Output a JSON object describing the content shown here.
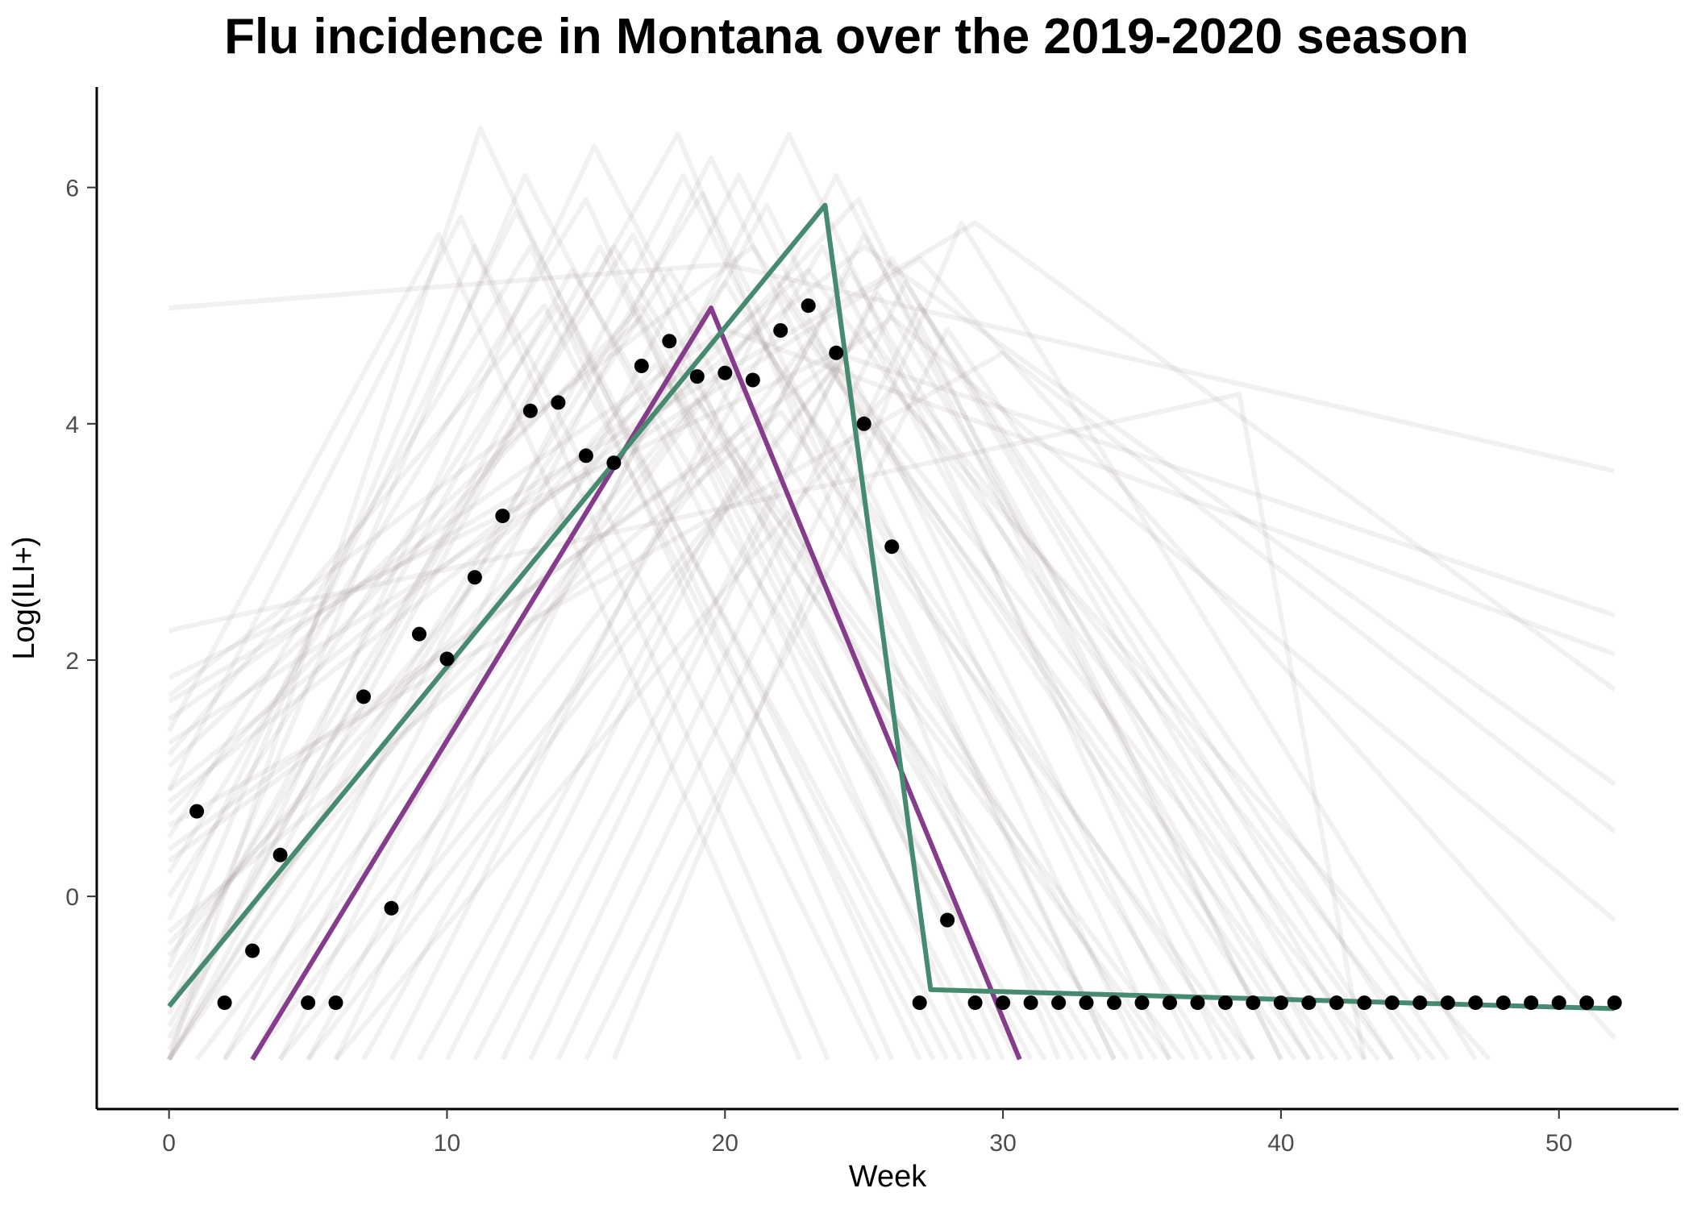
{
  "chart_data": {
    "type": "line",
    "title": "Flu incidence in Montana over the 2019-2020 season",
    "xlabel": "Week",
    "ylabel": "Log(ILI+)",
    "xlim": [
      -2.6,
      54.3
    ],
    "ylim": [
      -1.8,
      6.85
    ],
    "xticks": [
      0,
      10,
      20,
      30,
      40,
      50
    ],
    "yticks": [
      0,
      2,
      4,
      6
    ],
    "grid": false,
    "legend": "none",
    "colors": {
      "background_lines": "#9e8a8a",
      "green_fit": "#468a70",
      "purple_fit": "#853c8b",
      "points": "#000000"
    },
    "observed_points": [
      {
        "x": 1,
        "y": 0.72
      },
      {
        "x": 2,
        "y": -0.9
      },
      {
        "x": 3,
        "y": -0.46
      },
      {
        "x": 4,
        "y": 0.35
      },
      {
        "x": 5,
        "y": -0.9
      },
      {
        "x": 6,
        "y": -0.9
      },
      {
        "x": 7,
        "y": 1.69
      },
      {
        "x": 8,
        "y": -0.1
      },
      {
        "x": 9,
        "y": 2.22
      },
      {
        "x": 10,
        "y": 2.01
      },
      {
        "x": 11,
        "y": 2.7
      },
      {
        "x": 12,
        "y": 3.22
      },
      {
        "x": 13,
        "y": 4.11
      },
      {
        "x": 14,
        "y": 4.18
      },
      {
        "x": 15,
        "y": 3.73
      },
      {
        "x": 16,
        "y": 3.67
      },
      {
        "x": 17,
        "y": 4.49
      },
      {
        "x": 18,
        "y": 4.7
      },
      {
        "x": 19,
        "y": 4.4
      },
      {
        "x": 20,
        "y": 4.43
      },
      {
        "x": 21,
        "y": 4.37
      },
      {
        "x": 22,
        "y": 4.79
      },
      {
        "x": 23,
        "y": 5.0
      },
      {
        "x": 24,
        "y": 4.6
      },
      {
        "x": 25,
        "y": 4.0
      },
      {
        "x": 26,
        "y": 2.96
      },
      {
        "x": 27,
        "y": -0.9
      },
      {
        "x": 28,
        "y": -0.2
      },
      {
        "x": 29,
        "y": -0.9
      },
      {
        "x": 30,
        "y": -0.9
      },
      {
        "x": 31,
        "y": -0.9
      },
      {
        "x": 32,
        "y": -0.9
      },
      {
        "x": 33,
        "y": -0.9
      },
      {
        "x": 34,
        "y": -0.9
      },
      {
        "x": 35,
        "y": -0.9
      },
      {
        "x": 36,
        "y": -0.9
      },
      {
        "x": 37,
        "y": -0.9
      },
      {
        "x": 38,
        "y": -0.9
      },
      {
        "x": 39,
        "y": -0.9
      },
      {
        "x": 40,
        "y": -0.9
      },
      {
        "x": 41,
        "y": -0.9
      },
      {
        "x": 42,
        "y": -0.9
      },
      {
        "x": 43,
        "y": -0.9
      },
      {
        "x": 44,
        "y": -0.9
      },
      {
        "x": 45,
        "y": -0.9
      },
      {
        "x": 46,
        "y": -0.9
      },
      {
        "x": 47,
        "y": -0.9
      },
      {
        "x": 48,
        "y": -0.9
      },
      {
        "x": 49,
        "y": -0.9
      },
      {
        "x": 50,
        "y": -0.9
      },
      {
        "x": 51,
        "y": -0.9
      },
      {
        "x": 52,
        "y": -0.9
      }
    ],
    "green_fit": [
      {
        "x": 0,
        "y": -0.93
      },
      {
        "x": 23.6,
        "y": 5.85
      },
      {
        "x": 27.4,
        "y": -0.79
      },
      {
        "x": 52,
        "y": -0.95
      }
    ],
    "purple_fit": [
      {
        "x": 3,
        "y": -1.38
      },
      {
        "x": 19.5,
        "y": 4.98
      },
      {
        "x": 30.6,
        "y": -1.38
      }
    ],
    "background_lines": [
      [
        [
          0,
          4.98
        ],
        [
          20,
          5.35
        ],
        [
          52,
          3.6
        ]
      ],
      [
        [
          0,
          2.25
        ],
        [
          38.5,
          4.25
        ],
        [
          43,
          -1.38
        ]
      ],
      [
        [
          0,
          1.85
        ],
        [
          24,
          4.6
        ],
        [
          52,
          2.38
        ]
      ],
      [
        [
          0,
          1.5
        ],
        [
          20,
          4.8
        ],
        [
          52,
          2.05
        ]
      ],
      [
        [
          0,
          1.65
        ],
        [
          29,
          5.7
        ],
        [
          52,
          1.75
        ]
      ],
      [
        [
          0,
          0.8
        ],
        [
          25,
          5.5
        ],
        [
          52,
          0.95
        ]
      ],
      [
        [
          0,
          0.6
        ],
        [
          30,
          4.6
        ],
        [
          52,
          0.55
        ]
      ],
      [
        [
          0,
          0.3
        ],
        [
          26,
          4.9
        ],
        [
          52,
          -0.2
        ]
      ],
      [
        [
          0,
          1.4
        ],
        [
          9.7,
          5.6
        ],
        [
          22.7,
          -1.38
        ]
      ],
      [
        [
          0,
          0.9
        ],
        [
          10.5,
          5.75
        ],
        [
          23.7,
          -1.38
        ]
      ],
      [
        [
          0,
          -0.6
        ],
        [
          11,
          5.5
        ],
        [
          25.5,
          -1.38
        ]
      ],
      [
        [
          0,
          0.5
        ],
        [
          13,
          5.5
        ],
        [
          26,
          -1.38
        ]
      ],
      [
        [
          0,
          -1.38
        ],
        [
          11.2,
          6.5
        ],
        [
          27,
          -1.38
        ]
      ],
      [
        [
          0,
          -0.2
        ],
        [
          12.5,
          5.8
        ],
        [
          28,
          -1.38
        ]
      ],
      [
        [
          0,
          0.0
        ],
        [
          14,
          5.0
        ],
        [
          28.5,
          -1.38
        ]
      ],
      [
        [
          0,
          -1.0
        ],
        [
          12.8,
          6.1
        ],
        [
          29.5,
          -1.38
        ]
      ],
      [
        [
          0,
          -1.2
        ],
        [
          15.5,
          5.5
        ],
        [
          30.5,
          -1.38
        ]
      ],
      [
        [
          0,
          -0.8
        ],
        [
          14.5,
          5.3
        ],
        [
          31.5,
          -1.38
        ]
      ],
      [
        [
          0,
          -1.3
        ],
        [
          15.3,
          6.35
        ],
        [
          32.5,
          -1.38
        ]
      ],
      [
        [
          0,
          0.7
        ],
        [
          17,
          5.0
        ],
        [
          33,
          -1.38
        ]
      ],
      [
        [
          0,
          -1.38
        ],
        [
          16,
          5.5
        ],
        [
          33.5,
          -1.38
        ]
      ],
      [
        [
          2,
          -1.38
        ],
        [
          18.5,
          6.1
        ],
        [
          34,
          -1.38
        ]
      ],
      [
        [
          0,
          -0.5
        ],
        [
          17.5,
          4.5
        ],
        [
          34.5,
          -1.38
        ]
      ],
      [
        [
          3,
          -1.38
        ],
        [
          19.5,
          6.25
        ],
        [
          35,
          -1.38
        ]
      ],
      [
        [
          0,
          -1.38
        ],
        [
          18,
          5.3
        ],
        [
          35.5,
          -1.38
        ]
      ],
      [
        [
          4,
          -1.38
        ],
        [
          20.5,
          6.1
        ],
        [
          36,
          -1.38
        ]
      ],
      [
        [
          0,
          -0.9
        ],
        [
          19,
          4.2
        ],
        [
          36.5,
          -1.38
        ]
      ],
      [
        [
          5,
          -1.38
        ],
        [
          21.5,
          5.85
        ],
        [
          37,
          -1.38
        ]
      ],
      [
        [
          0,
          -1.38
        ],
        [
          20,
          5.2
        ],
        [
          37.5,
          -1.38
        ]
      ],
      [
        [
          6,
          -1.38
        ],
        [
          22.3,
          6.45
        ],
        [
          38,
          -1.38
        ]
      ],
      [
        [
          1,
          -1.38
        ],
        [
          21,
          4.8
        ],
        [
          38.5,
          -1.38
        ]
      ],
      [
        [
          7,
          -1.38
        ],
        [
          23.5,
          5.5
        ],
        [
          39,
          -1.38
        ]
      ],
      [
        [
          8,
          -1.38
        ],
        [
          24,
          6.1
        ],
        [
          40,
          -1.38
        ]
      ],
      [
        [
          2,
          -1.38
        ],
        [
          22,
          5.1
        ],
        [
          40.5,
          -1.38
        ]
      ],
      [
        [
          9,
          -1.38
        ],
        [
          24.5,
          5.3
        ],
        [
          41,
          -1.38
        ]
      ],
      [
        [
          10,
          -1.38
        ],
        [
          25,
          5.6
        ],
        [
          41.5,
          -1.38
        ]
      ],
      [
        [
          3,
          -1.38
        ],
        [
          23,
          4.7
        ],
        [
          42,
          -1.38
        ]
      ],
      [
        [
          11,
          -1.38
        ],
        [
          25.5,
          5.1
        ],
        [
          42.5,
          -1.38
        ]
      ],
      [
        [
          12,
          -1.38
        ],
        [
          26,
          5.4
        ],
        [
          43,
          -1.38
        ]
      ],
      [
        [
          4,
          -1.38
        ],
        [
          24,
          4.5
        ],
        [
          43.5,
          -1.38
        ]
      ],
      [
        [
          13,
          -1.38
        ],
        [
          26.5,
          5.2
        ],
        [
          44,
          -1.38
        ]
      ],
      [
        [
          14,
          -1.38
        ],
        [
          27,
          5.0
        ],
        [
          45,
          -1.38
        ]
      ],
      [
        [
          5,
          -1.38
        ],
        [
          25,
          4.8
        ],
        [
          45.5,
          -1.38
        ]
      ],
      [
        [
          15,
          -1.38
        ],
        [
          28,
          4.8
        ],
        [
          46,
          -1.38
        ]
      ],
      [
        [
          16,
          -1.38
        ],
        [
          28.5,
          5.7
        ],
        [
          47,
          -1.38
        ]
      ],
      [
        [
          6,
          -1.38
        ],
        [
          26,
          4.3
        ],
        [
          47.5,
          -1.38
        ]
      ],
      [
        [
          0,
          0.4
        ],
        [
          20,
          3.8
        ],
        [
          36,
          -1.38
        ]
      ],
      [
        [
          0,
          -0.3
        ],
        [
          22,
          4.1
        ],
        [
          39,
          -1.38
        ]
      ],
      [
        [
          0,
          1.1
        ],
        [
          17,
          4.9
        ],
        [
          31,
          -1.38
        ]
      ],
      [
        [
          0,
          0.2
        ],
        [
          15,
          5.9
        ],
        [
          29,
          -1.38
        ]
      ],
      [
        [
          0,
          -1.1
        ],
        [
          18.3,
          6.45
        ],
        [
          32,
          -1.38
        ]
      ],
      [
        [
          0,
          1.7
        ],
        [
          21,
          5.5
        ],
        [
          41,
          -1.38
        ]
      ],
      [
        [
          0,
          -0.7
        ],
        [
          16.7,
          5.6
        ],
        [
          30,
          -1.38
        ]
      ],
      [
        [
          0,
          1.2
        ],
        [
          13.5,
          5.0
        ],
        [
          27.5,
          -1.38
        ]
      ],
      [
        [
          0,
          -1.38
        ],
        [
          19.2,
          5.95
        ],
        [
          34,
          -1.38
        ]
      ],
      [
        [
          0,
          0.9
        ],
        [
          23,
          5.3
        ],
        [
          44,
          -1.38
        ]
      ],
      [
        [
          0,
          -0.4
        ],
        [
          24.8,
          5.9
        ],
        [
          40,
          -1.38
        ]
      ],
      [
        [
          0,
          1.3
        ],
        [
          27,
          5.4
        ],
        [
          52,
          -1.2
        ]
      ]
    ]
  }
}
